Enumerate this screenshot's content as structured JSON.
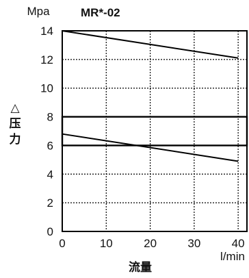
{
  "chart_data": {
    "type": "line",
    "title": "MR*-02",
    "y_unit": "Mpa",
    "ylabel_lines": [
      "△",
      "压",
      "力"
    ],
    "x_unit": "l/min",
    "xlabel": "流量",
    "xlim": [
      0,
      42
    ],
    "ylim": [
      0,
      14
    ],
    "x_ticks": [
      0,
      10,
      20,
      30,
      40
    ],
    "y_ticks": [
      0,
      2,
      4,
      6,
      8,
      10,
      12,
      14
    ],
    "grid": true,
    "series": [
      {
        "x": [
          0,
          40
        ],
        "y": [
          14.0,
          12.1
        ]
      },
      {
        "x": [
          0,
          40
        ],
        "y": [
          6.8,
          4.9
        ]
      }
    ],
    "reference_box": {
      "y_top": 8,
      "y_bottom": 6
    }
  }
}
